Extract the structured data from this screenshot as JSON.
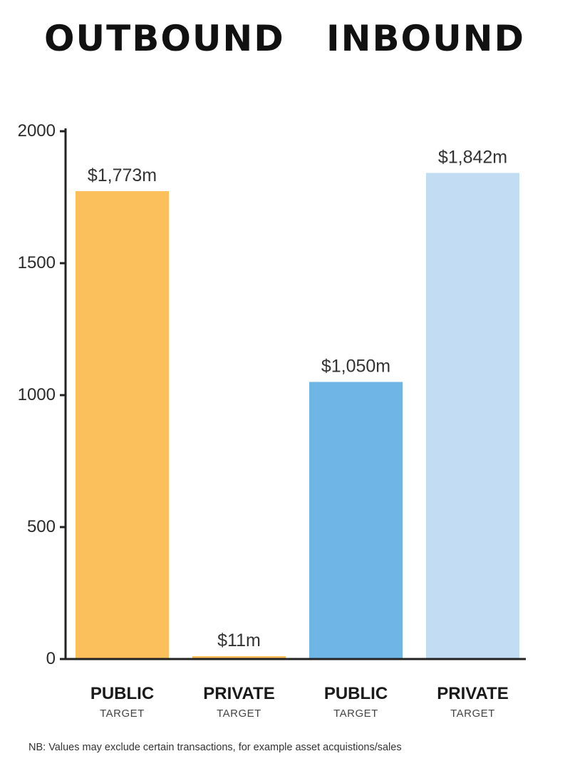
{
  "headings": {
    "outbound": "OUTBOUND",
    "inbound": "INBOUND"
  },
  "chart_data": {
    "type": "bar",
    "categories": [
      {
        "main": "PUBLIC",
        "sub": "TARGET",
        "group": "OUTBOUND"
      },
      {
        "main": "PRIVATE",
        "sub": "TARGET",
        "group": "OUTBOUND"
      },
      {
        "main": "PUBLIC",
        "sub": "TARGET",
        "group": "INBOUND"
      },
      {
        "main": "PRIVATE",
        "sub": "TARGET",
        "group": "INBOUND"
      }
    ],
    "values": [
      1773,
      11,
      1050,
      1842
    ],
    "data_labels": [
      "$1,773m",
      "$11m",
      "$1,050m",
      "$1,842m"
    ],
    "colors": [
      "#fbbf5c",
      "#fbbf5c",
      "#6fb6e6",
      "#c2dcf3"
    ],
    "ylim": [
      0,
      2000
    ],
    "yticks": [
      0,
      500,
      1000,
      1500,
      2000
    ],
    "grid": false,
    "title": "",
    "xlabel": "",
    "ylabel": ""
  },
  "note": "NB: Values may exclude certain transactions, for example asset acquistions/sales"
}
